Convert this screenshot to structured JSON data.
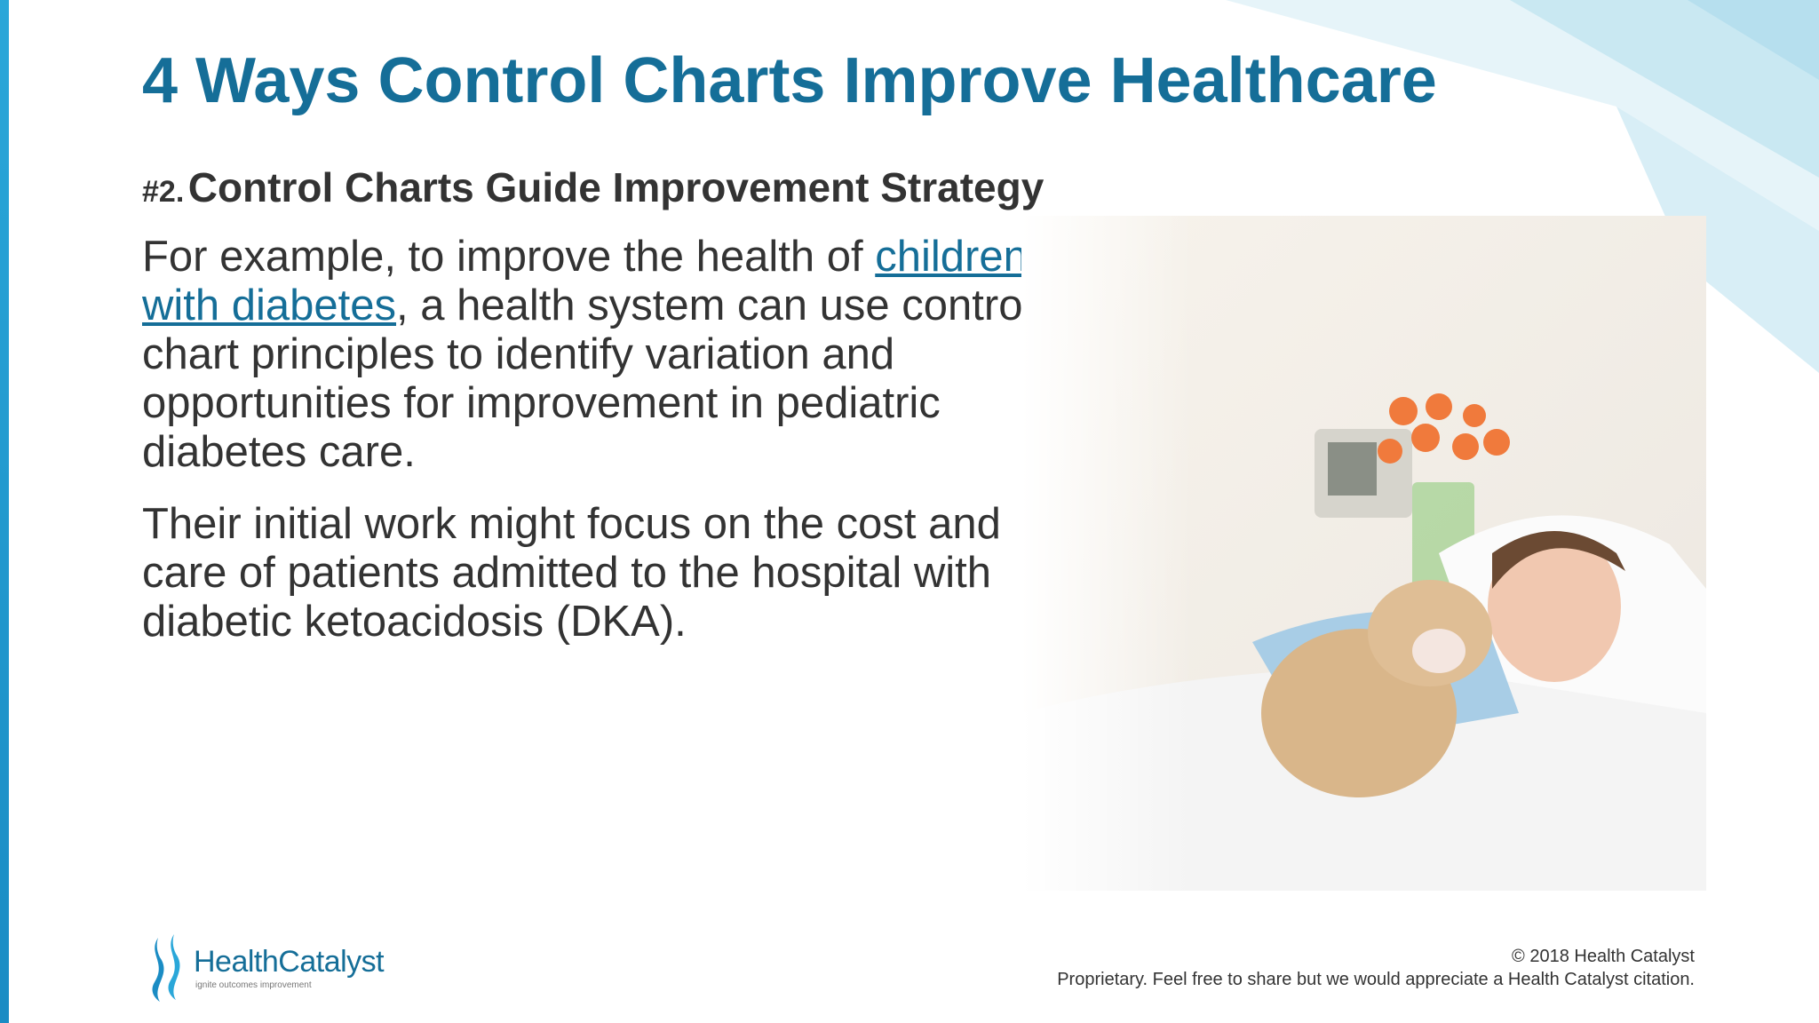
{
  "header": {
    "title": "4 Ways Control Charts Improve Healthcare"
  },
  "subtitle": {
    "number": "#2.",
    "text": "Control Charts Guide Improvement Strategy"
  },
  "body": {
    "paragraphs": [
      {
        "before": "For example, to improve the health of ",
        "link": "children with diabetes",
        "after": ", a health system can use control chart principles to identify variation and opportunities for improvement in pediatric diabetes care."
      },
      {
        "text": "Their initial work might focus on the cost and care of patients admitted to the hospital with diabetic ketoacidosis (DKA)."
      }
    ]
  },
  "logo": {
    "name": "HealthCatalyst",
    "tagline": "ignite outcomes improvement"
  },
  "footer": {
    "copyright": "© 2018 Health Catalyst",
    "notice": "Proprietary. Feel free to share but we would appreciate a Health Catalyst citation."
  }
}
